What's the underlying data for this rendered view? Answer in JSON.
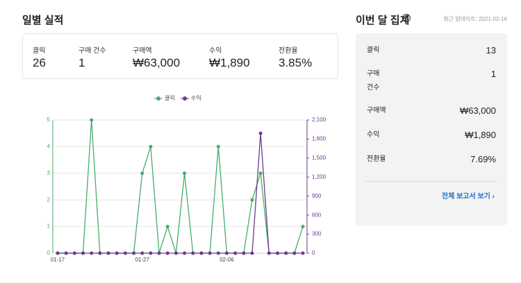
{
  "left": {
    "title": "일별 실적",
    "metrics": [
      {
        "label": "클릭",
        "value": "26"
      },
      {
        "label": "구매 건수",
        "value": "1"
      },
      {
        "label": "구매액",
        "value": "₩63,000"
      },
      {
        "label": "수익",
        "value": "₩1,890"
      },
      {
        "label": "전환율",
        "value": "3.85%"
      }
    ]
  },
  "right": {
    "title": "이번 달 집계",
    "help": "?",
    "updated": "최근 업데이트: 2021-02-16",
    "rows": [
      {
        "label": "클릭",
        "value": "13"
      },
      {
        "label": "구매 건수",
        "value": "1"
      },
      {
        "label": "구매액",
        "value": "₩63,000"
      },
      {
        "label": "수익",
        "value": "₩1,890"
      },
      {
        "label": "전환율",
        "value": "7.69%"
      }
    ],
    "link": "전체 보고서 보기 ›"
  },
  "chart_data": {
    "type": "line",
    "categories": [
      "01-17",
      null,
      null,
      null,
      null,
      null,
      null,
      null,
      null,
      null,
      "01-27",
      null,
      null,
      null,
      null,
      null,
      null,
      null,
      null,
      null,
      "02-06",
      null,
      null,
      null,
      null,
      null,
      null,
      null,
      null,
      null
    ],
    "series": [
      {
        "name": "클릭",
        "color": "#45ad6b",
        "values": [
          0,
          0,
          0,
          0,
          5,
          0,
          0,
          0,
          0,
          0,
          3,
          4,
          0,
          1,
          0,
          3,
          0,
          0,
          0,
          4,
          0,
          0,
          0,
          2,
          3,
          0,
          0,
          0,
          0,
          1
        ]
      },
      {
        "name": "수익",
        "color": "#6a3a8e",
        "axis": "y2",
        "values": [
          0,
          0,
          0,
          0,
          0,
          0,
          0,
          0,
          0,
          0,
          0,
          0,
          0,
          0,
          0,
          0,
          0,
          0,
          0,
          0,
          0,
          0,
          0,
          0,
          1890,
          0,
          0,
          0,
          0,
          0
        ]
      }
    ],
    "ylim": [
      0,
      5
    ],
    "yticks": [
      0,
      1,
      2,
      3,
      4,
      5
    ],
    "y2lim": [
      0,
      2100
    ],
    "y2ticks": [
      0,
      300,
      600,
      900,
      {
        "value": 1200,
        "label": "1,200"
      },
      {
        "value": 1500,
        "label": "1,500"
      },
      {
        "value": 1800,
        "label": "1,800"
      },
      {
        "value": 2100,
        "label": "2,100"
      }
    ],
    "grid": true,
    "legend": "top"
  }
}
